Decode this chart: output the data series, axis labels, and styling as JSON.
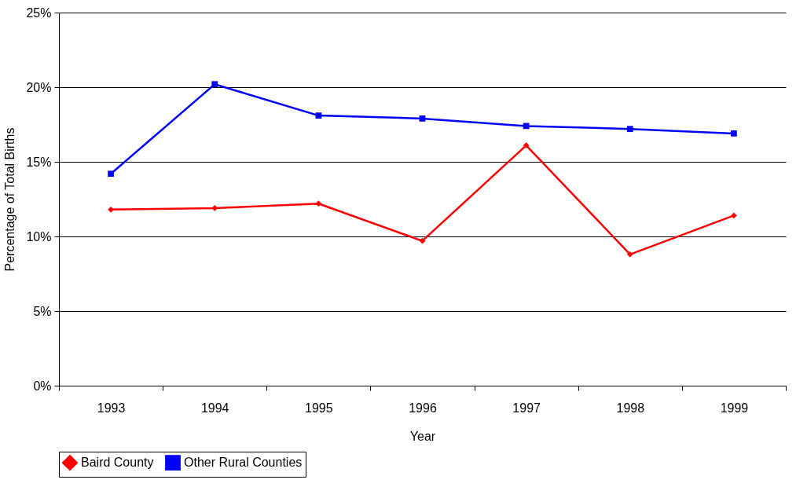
{
  "chart_data": {
    "type": "line",
    "xlabel": "Year",
    "ylabel": "Percentage of Total Births",
    "categories": [
      "1993",
      "1994",
      "1995",
      "1996",
      "1997",
      "1998",
      "1999"
    ],
    "series": [
      {
        "name": "Baird County",
        "color": "#ff0000",
        "marker": "diamond",
        "values": [
          11.8,
          11.9,
          12.2,
          9.7,
          16.1,
          8.8,
          11.4
        ]
      },
      {
        "name": "Other Rural Counties",
        "color": "#0000ff",
        "marker": "square",
        "values": [
          14.2,
          20.2,
          18.1,
          17.9,
          17.4,
          17.2,
          16.9
        ]
      }
    ],
    "ylim": [
      0,
      25
    ],
    "yticks": [
      {
        "value": 0,
        "label": "0%"
      },
      {
        "value": 5,
        "label": "5%"
      },
      {
        "value": 10,
        "label": "10%"
      },
      {
        "value": 15,
        "label": "15%"
      },
      {
        "value": 20,
        "label": "20%"
      },
      {
        "value": 25,
        "label": "25%"
      }
    ],
    "grid": "y",
    "legend": "bottom",
    "line_style": "solid"
  }
}
